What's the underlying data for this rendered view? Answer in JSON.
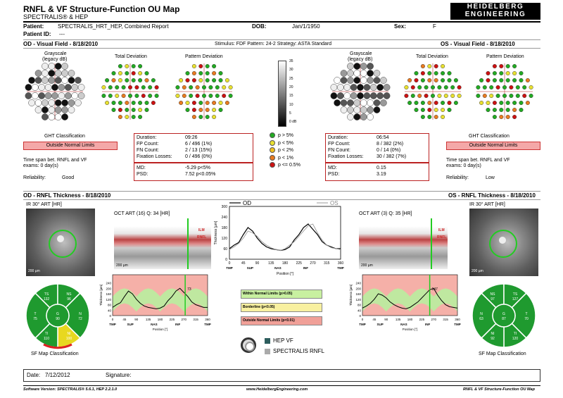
{
  "header": {
    "title": "RNFL & VF Structure-Function OU Map",
    "subtitle": "SPECTRALIS® & HEP",
    "logo_line1": "HEIDELBERG",
    "logo_line2": "ENGINEERING"
  },
  "patient": {
    "patient_label": "Patient:",
    "patient_value": "SPECTRALIS_HRT_HEP, Combined Report",
    "dob_label": "DOB:",
    "dob_value": "Jan/1/1950",
    "sex_label": "Sex:",
    "sex_value": "F",
    "id_label": "Patient ID:",
    "id_value": "---"
  },
  "vf_bar": {
    "od_title": "OD - Visual Field - 8/18/2010",
    "params": "Stimulus: FDF  Pattern: 24-2  Strategy: ASTA Standard",
    "os_title": "OS - Visual Field - 8/18/2010"
  },
  "plot_labels": {
    "grayscale": "Grayscale",
    "grayscale_sub": "(legacy dB)",
    "total_dev": "Total Deviation",
    "pattern_dev": "Pattern Deviation"
  },
  "scale": {
    "ticks": [
      "35",
      "30",
      "25",
      "20",
      "15",
      "10",
      "5",
      "0 dB"
    ]
  },
  "p_legend": [
    {
      "label": "p > 5%",
      "color": "#22aa22"
    },
    {
      "label": "p < 5%",
      "color": "#e8e030"
    },
    {
      "label": "p < 2%",
      "color": "#f0c020"
    },
    {
      "label": "p < 1%",
      "color": "#e87a20"
    },
    {
      "label": "p <= 0.5%",
      "color": "#cc1111"
    }
  ],
  "od_stats": {
    "duration_label": "Duration:",
    "duration": "09:26",
    "fp_label": "FP Count:",
    "fp": "6 / 496  (1%)",
    "fn_label": "FN Count:",
    "fn": "2 / 13  (15%)",
    "fix_label": "Fixation Losses:",
    "fix": "0 / 496  (0%)",
    "md_label": "MD:",
    "md": "-5.29 p<5%",
    "psd_label": "PSD:",
    "psd": "7.52 p<0.05%"
  },
  "os_stats": {
    "duration_label": "Duration:",
    "duration": "06:54",
    "fp_label": "FP Count:",
    "fp": "8 / 382  (2%)",
    "fn_label": "FN Count:",
    "fn": "0 / 14  (0%)",
    "fix_label": "Fixation Losses:",
    "fix": "30 / 382  (7%)",
    "md_label": "MD:",
    "md": "0.15",
    "psd_label": "PSD:",
    "psd": "3.19"
  },
  "od_ght": {
    "title": "GHT Classification",
    "value": "Outside Normal Limits",
    "timespan": "Time span bet. RNFL and VF",
    "exams": "exams: 0 day(s)",
    "rel_label": "Reliability:",
    "rel_value": "Good"
  },
  "os_ght": {
    "title": "GHT Classification",
    "value": "Outside Normal Limits",
    "timespan": "Time span bet. RNFL and VF",
    "exams": "exams: 0 day(s)",
    "rel_label": "Reliability:",
    "rel_value": "Low"
  },
  "rnfl_bar": {
    "od_title": "OD - RNFL Thickness - 8/18/2010",
    "os_title": "OS - RNFL Thickness - 8/18/2010"
  },
  "od_rnfl": {
    "ir_label": "IR 30° ART [HR]",
    "oct_label": "OCT ART (16) Q: 34 [HR]",
    "scalebar": "200 µm",
    "ilm": "ILM",
    "rnfl": "RNFL",
    "marker_value": "73",
    "sectors": {
      "TS": "132",
      "NS": "96",
      "T": "75",
      "G": "90",
      "N": "72",
      "TI": "110",
      "NI": "100"
    },
    "map_label": "SF Map Classification"
  },
  "os_rnfl": {
    "ir_label": "IR 30° ART [HR]",
    "oct_label": "OCT ART (3) Q: 35 [HR]",
    "scalebar": "200 µm",
    "ilm": "ILM",
    "rnfl": "RNFL",
    "marker_value": "147",
    "sectors": {
      "NS": "97",
      "TS": "127",
      "N": "63",
      "G": "87",
      "T": "70",
      "NI": "92",
      "TI": "120"
    },
    "map_label": "SF Map Classification"
  },
  "thickness_plot": {
    "ylabel": "Thickness [µm]",
    "yticks": [
      "0",
      "40",
      "80",
      "120",
      "160",
      "200",
      "240"
    ],
    "xticks": [
      "0",
      "45",
      "90",
      "135",
      "180",
      "225",
      "270",
      "315",
      "360"
    ],
    "xsectors": [
      "TMP",
      "SUP",
      "NAS",
      "INF",
      "TMP"
    ],
    "xlabel": "Position [°]"
  },
  "chart_data": {
    "type": "line",
    "title": "",
    "xlabel": "Position [°]",
    "ylabel": "Thickness [µm]",
    "xlim": [
      0,
      360
    ],
    "ylim": [
      0,
      300
    ],
    "x": [
      0,
      15,
      30,
      45,
      60,
      75,
      90,
      105,
      120,
      135,
      150,
      165,
      180,
      195,
      210,
      225,
      240,
      255,
      270,
      285,
      300,
      315,
      330,
      345,
      360
    ],
    "series": [
      {
        "name": "OD",
        "color": "#000000",
        "values": [
          60,
          80,
          95,
          140,
          180,
          160,
          120,
          90,
          70,
          60,
          55,
          50,
          55,
          70,
          110,
          140,
          180,
          200,
          170,
          140,
          100,
          80,
          70,
          60,
          60
        ]
      },
      {
        "name": "OS",
        "color": "#999999",
        "values": [
          55,
          70,
          90,
          120,
          160,
          150,
          130,
          100,
          80,
          65,
          55,
          50,
          60,
          80,
          100,
          130,
          160,
          190,
          200,
          150,
          110,
          80,
          65,
          60,
          55
        ]
      }
    ]
  },
  "center_legend": {
    "od_label": "OD",
    "os_label": "OS",
    "within": "Within Normal Limits (p>0.05)",
    "borderline": "Borderline (p<0.05)",
    "outside": "Outside Normal Limits (p<0.01)",
    "hep_vf": "HEP VF",
    "spectralis": "SPECTRALIS RNFL"
  },
  "footer": {
    "date_label": "Date:",
    "date_value": "7/12/2012",
    "sig_label": "Signature:",
    "software": "Software Version: SPECTRALIS® 5.6.1, HEP 2.2.1.0",
    "website": "www.HeidelbergEngineering.com",
    "report": "RNFL & VF Structure-Function OU Map"
  }
}
